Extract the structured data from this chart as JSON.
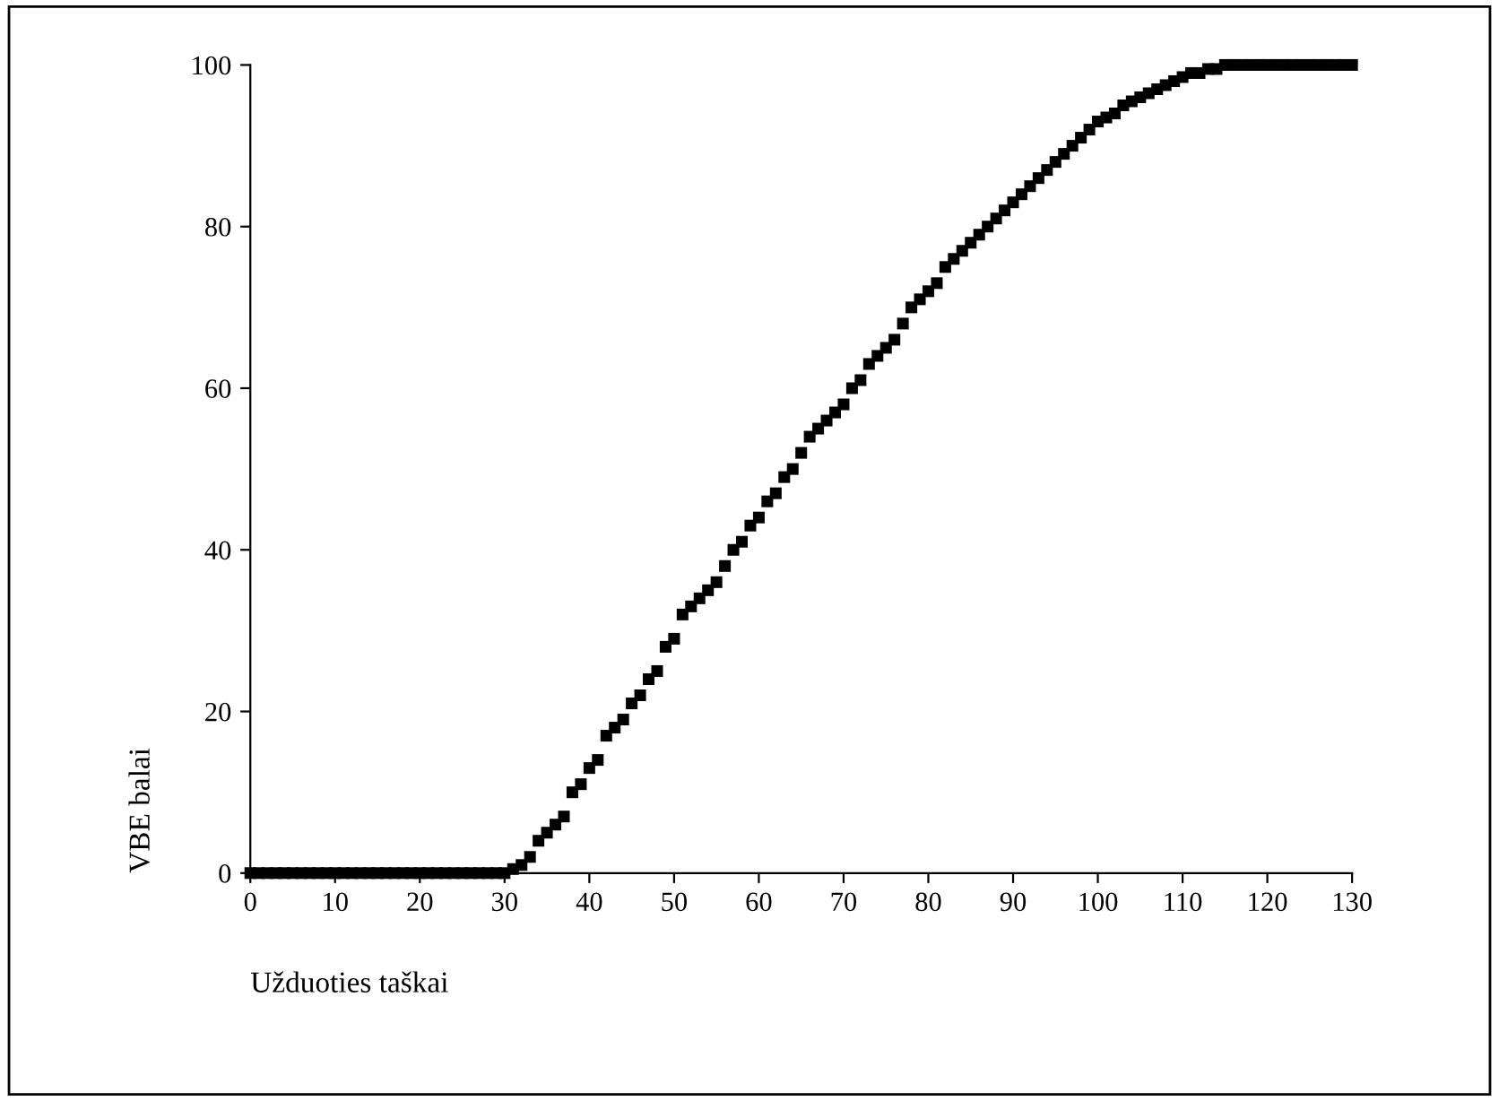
{
  "chart_data": {
    "type": "scatter",
    "xlabel": "Užduoties taškai",
    "ylabel": "VBE balai",
    "x": [
      0,
      1,
      2,
      3,
      4,
      5,
      6,
      7,
      8,
      9,
      10,
      11,
      12,
      13,
      14,
      15,
      16,
      17,
      18,
      19,
      20,
      21,
      22,
      23,
      24,
      25,
      26,
      27,
      28,
      29,
      30,
      31,
      32,
      33,
      34,
      35,
      36,
      37,
      38,
      39,
      40,
      41,
      42,
      43,
      44,
      45,
      46,
      47,
      48,
      49,
      50,
      51,
      52,
      53,
      54,
      55,
      56,
      57,
      58,
      59,
      60,
      61,
      62,
      63,
      64,
      65,
      66,
      67,
      68,
      69,
      70,
      71,
      72,
      73,
      74,
      75,
      76,
      77,
      78,
      79,
      80,
      81,
      82,
      83,
      84,
      85,
      86,
      87,
      88,
      89,
      90,
      91,
      92,
      93,
      94,
      95,
      96,
      97,
      98,
      99,
      100,
      101,
      102,
      103,
      104,
      105,
      106,
      107,
      108,
      109,
      110,
      111,
      112,
      113,
      114,
      115,
      116,
      117,
      118,
      119,
      120,
      121,
      122,
      123,
      124,
      125,
      126,
      127,
      128,
      129,
      130
    ],
    "series": [
      {
        "color": "#000000",
        "values": [
          0,
          0,
          0,
          0,
          0,
          0,
          0,
          0,
          0,
          0,
          0,
          0,
          0,
          0,
          0,
          0,
          0,
          0,
          0,
          0,
          0,
          0,
          0,
          0,
          0,
          0,
          0,
          0,
          0,
          0,
          0,
          0.5,
          1,
          2,
          4,
          5,
          6,
          7,
          10,
          11,
          13,
          14,
          17,
          18,
          19,
          21,
          22,
          24,
          25,
          28,
          29,
          32,
          33,
          34,
          35,
          36,
          38,
          40,
          41,
          43,
          44,
          46,
          47,
          49,
          50,
          52,
          54,
          55,
          56,
          57,
          58,
          60,
          61,
          63,
          64,
          65,
          66,
          68,
          70,
          71,
          72,
          73,
          75,
          76,
          77,
          78,
          79,
          80,
          81,
          82,
          83,
          84,
          85,
          86,
          87,
          88,
          89,
          90,
          91,
          92,
          93,
          93.5,
          94,
          95,
          95.5,
          96,
          96.5,
          97,
          97.5,
          98,
          98.5,
          99,
          99,
          99.5,
          99.5,
          100,
          100,
          100,
          100,
          100,
          100,
          100,
          100,
          100,
          100,
          100,
          100,
          100,
          100,
          100,
          100
        ]
      }
    ],
    "xlim": [
      0,
      130
    ],
    "ylim": [
      0,
      100
    ],
    "xticks": [
      0,
      10,
      20,
      30,
      40,
      50,
      60,
      70,
      80,
      90,
      100,
      110,
      120,
      130
    ],
    "yticks": [
      0,
      20,
      40,
      60,
      80,
      100
    ],
    "marker": "square",
    "grid": false
  }
}
